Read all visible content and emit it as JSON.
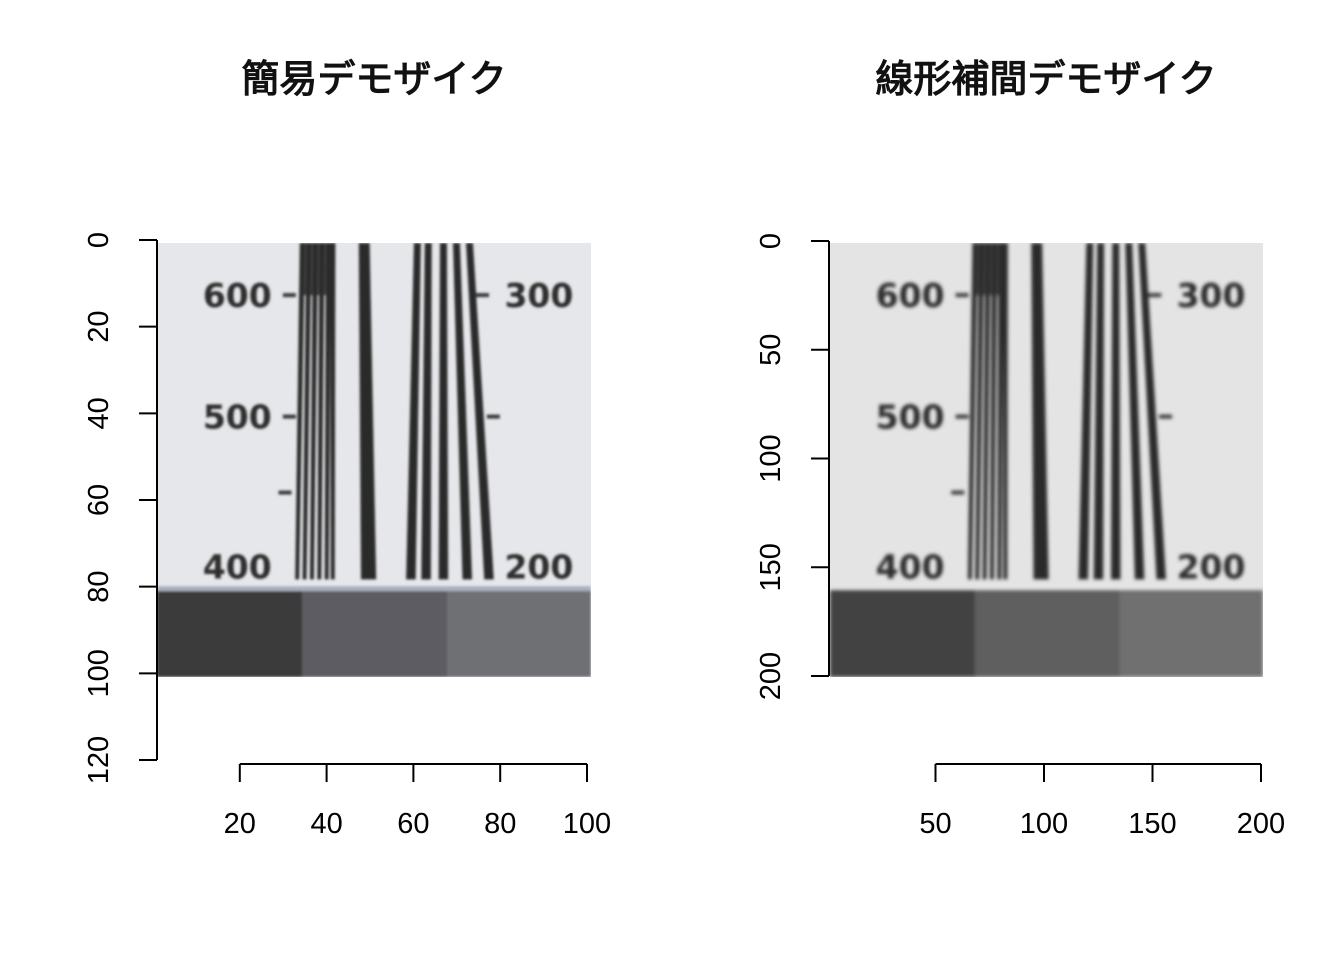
{
  "chart_data": [
    {
      "type": "image",
      "title": "簡易デモザイク",
      "xlim": [
        0,
        100
      ],
      "ylim": [
        0,
        120
      ],
      "x_ticks": [
        20,
        40,
        60,
        80,
        100
      ],
      "y_ticks": [
        0,
        20,
        40,
        60,
        80,
        100,
        120
      ],
      "image_extent": {
        "x": [
          0,
          100
        ],
        "y": [
          0,
          100
        ]
      },
      "image_labels": [
        "600",
        "500",
        "400",
        "300",
        "200"
      ],
      "patch_colors": [
        "#3b3b3b",
        "#5b5c62",
        "#6e6f73"
      ],
      "background_color": "#e6e7ea",
      "line_color": "#2a2a2c"
    },
    {
      "type": "image",
      "title": "線形補間デモザイク",
      "xlim": [
        0,
        200
      ],
      "ylim": [
        0,
        200
      ],
      "x_ticks": [
        50,
        100,
        150,
        200
      ],
      "y_ticks": [
        0,
        50,
        100,
        150,
        200
      ],
      "image_extent": {
        "x": [
          0,
          200
        ],
        "y": [
          0,
          200
        ]
      },
      "image_labels": [
        "600",
        "500",
        "400",
        "300",
        "200"
      ],
      "patch_colors": [
        "#424242",
        "#5e5e60",
        "#6f6f71"
      ],
      "background_color": "#e4e4e4",
      "line_color": "#2b2b2b"
    }
  ]
}
